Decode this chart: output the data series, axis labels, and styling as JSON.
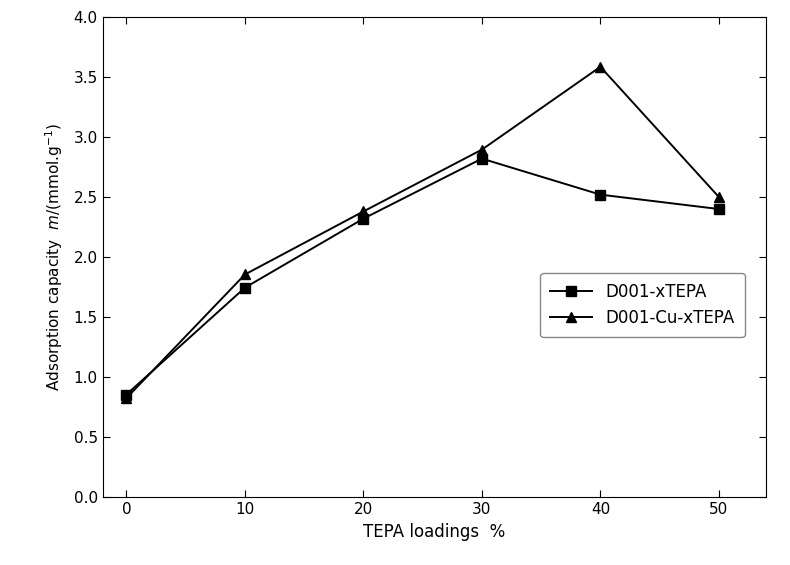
{
  "x": [
    0,
    10,
    20,
    30,
    40,
    50
  ],
  "y_d001": [
    0.855,
    1.745,
    2.32,
    2.82,
    2.52,
    2.4
  ],
  "y_d001cu": [
    0.825,
    1.855,
    2.38,
    2.895,
    3.585,
    2.5
  ],
  "label_d001": "D001-xTEPA",
  "label_d001cu": "D001-Cu-xTEPA",
  "xlabel": "TEPA loadings  %",
  "ylabel_top": "m/(mmol.g⁻¹)",
  "ylabel_bottom": "Adsorption capacity",
  "xlim": [
    -2,
    54
  ],
  "ylim": [
    0.0,
    4.0
  ],
  "xticks": [
    0,
    10,
    20,
    30,
    40,
    50
  ],
  "yticks": [
    0.0,
    0.5,
    1.0,
    1.5,
    2.0,
    2.5,
    3.0,
    3.5,
    4.0
  ],
  "line_color": "#000000",
  "marker_square": "s",
  "marker_triangle": "^",
  "markersize": 7,
  "linewidth": 1.4,
  "bg_color": "#ffffff",
  "figure_bg": "#ffffff"
}
